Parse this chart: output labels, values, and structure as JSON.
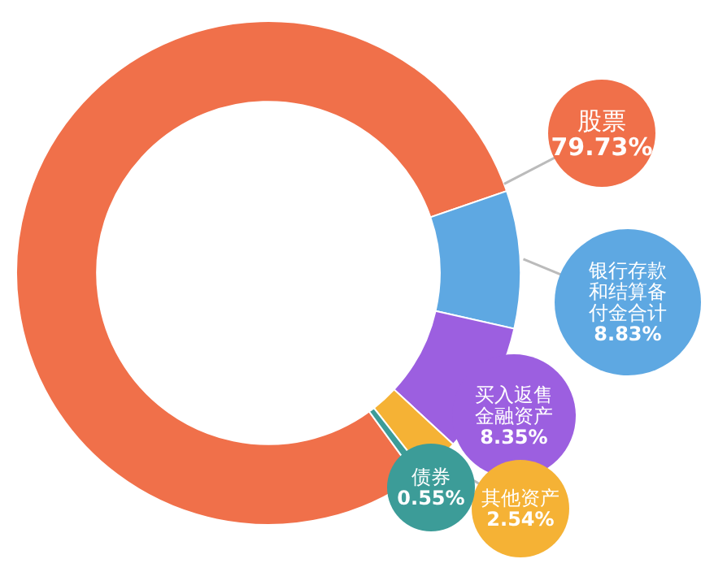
{
  "chart_data": {
    "type": "donut",
    "categories": [
      "股票",
      "银行存款和结算备付金合计",
      "买入返售金融资产",
      "其他资产",
      "债券"
    ],
    "values": [
      79.73,
      8.83,
      8.35,
      2.54,
      0.55
    ],
    "colors": [
      "#f0704a",
      "#5ea8e2",
      "#9c5fe0",
      "#f5b235",
      "#3c9c98"
    ],
    "value_labels": [
      "79.73%",
      "8.83%",
      "8.35%",
      "2.54%",
      "0.55%"
    ],
    "legend": false
  }
}
